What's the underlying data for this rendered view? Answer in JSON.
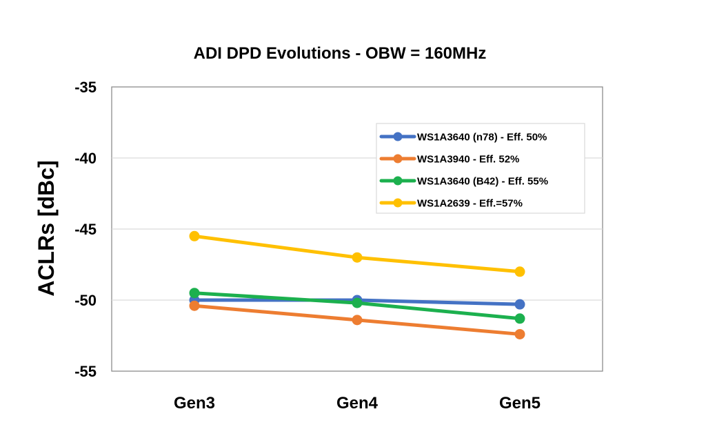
{
  "chart_data": {
    "type": "line",
    "title": "ADI DPD Evolutions - OBW = 160MHz",
    "xlabel": "",
    "ylabel": "ACLRs [dBc]",
    "categories": [
      "Gen3",
      "Gen4",
      "Gen5"
    ],
    "ylim": [
      -55,
      -35
    ],
    "yticks": [
      -35,
      -40,
      -45,
      -50,
      -55
    ],
    "grid": true,
    "legend_position": "top-right",
    "series": [
      {
        "name": "WS1A3640 (n78) - Eff. 50%",
        "color": "#4472C4",
        "values": [
          -50.0,
          -50.0,
          -50.3
        ]
      },
      {
        "name": "WS1A3940 - Eff. 52%",
        "color": "#ED7D31",
        "values": [
          -50.4,
          -51.4,
          -52.4
        ]
      },
      {
        "name": "WS1A3640 (B42) - Eff. 55%",
        "color": "#1CB04E",
        "values": [
          -49.5,
          -50.2,
          -51.3
        ]
      },
      {
        "name": "WS1A2639 - Eff.=57%",
        "color": "#FFC000",
        "values": [
          -45.5,
          -47.0,
          -48.0
        ]
      }
    ]
  }
}
